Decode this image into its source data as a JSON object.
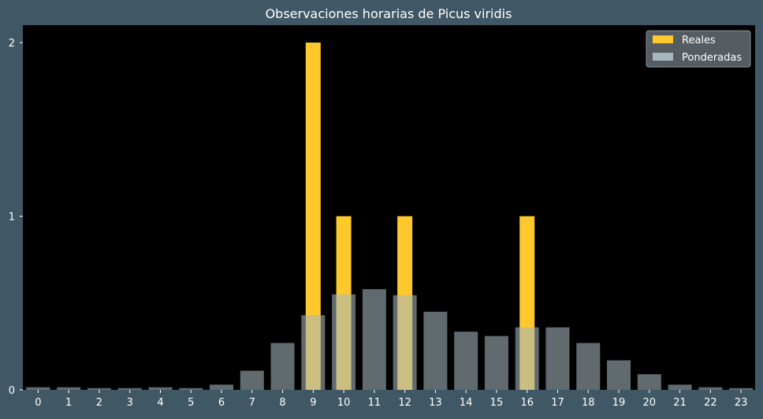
{
  "chart_data": {
    "type": "bar",
    "title": "Observaciones horarias de Picus viridis",
    "xlabel": "",
    "ylabel": "",
    "categories": [
      "0",
      "1",
      "2",
      "3",
      "4",
      "5",
      "6",
      "7",
      "8",
      "9",
      "10",
      "11",
      "12",
      "13",
      "14",
      "15",
      "16",
      "17",
      "18",
      "19",
      "20",
      "21",
      "22",
      "23"
    ],
    "ylim": [
      0,
      2.1
    ],
    "yticks": [
      "0",
      "1",
      "2"
    ],
    "grid": false,
    "legend_position": "top-right",
    "series": [
      {
        "name": "Reales",
        "color": "#ffc82d",
        "values": [
          0,
          0,
          0,
          0,
          0,
          0,
          0,
          0,
          0,
          2,
          1,
          0,
          1,
          0,
          0,
          0,
          1,
          0,
          0,
          0,
          0,
          0,
          0,
          0
        ]
      },
      {
        "name": "Ponderadas",
        "color": "#a5b7bf",
        "values": [
          0.015,
          0.015,
          0.01,
          0.01,
          0.015,
          0.01,
          0.03,
          0.11,
          0.27,
          0.43,
          0.55,
          0.58,
          0.545,
          0.45,
          0.335,
          0.31,
          0.36,
          0.36,
          0.27,
          0.17,
          0.09,
          0.03,
          0.015,
          0.01
        ]
      }
    ]
  }
}
